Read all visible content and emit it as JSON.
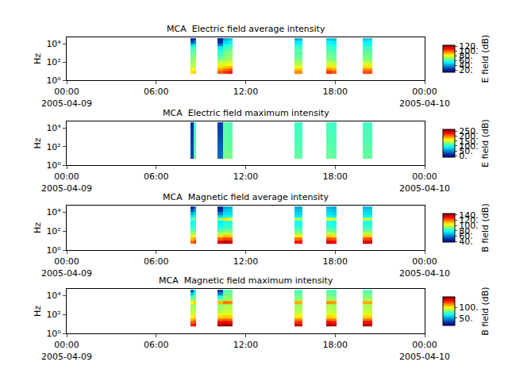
{
  "chart_data": [
    {
      "type": "heatmap",
      "title": "MCA  Electric field average intensity",
      "x": [
        "2005-04-09 08:18",
        "2005-04-09 08:30",
        "2005-04-09 08:41",
        "2005-04-09 10:05",
        "2005-04-09 10:30",
        "2005-04-09 10:50",
        "2005-04-09 11:08",
        "2005-04-09 15:16",
        "2005-04-09 15:47",
        "2005-04-09 17:25",
        "2005-04-09 17:45",
        "2005-04-09 18:05",
        "2005-04-09 19:52",
        "2005-04-09 20:30"
      ],
      "y": [
        5,
        10,
        20,
        40,
        80,
        160,
        320,
        640,
        1280,
        2560,
        5120,
        10240,
        20480,
        40000
      ],
      "cells": [
        [
          85,
          88,
          null,
          100,
          105,
          108,
          null,
          95,
          null,
          105,
          100,
          null,
          102
        ],
        [
          80,
          82,
          null,
          92,
          98,
          100,
          null,
          88,
          null,
          95,
          92,
          null,
          95
        ],
        [
          75,
          78,
          null,
          85,
          88,
          90,
          null,
          80,
          null,
          85,
          84,
          null,
          86
        ],
        [
          72,
          74,
          null,
          78,
          80,
          82,
          null,
          74,
          null,
          78,
          76,
          null,
          78
        ],
        [
          70,
          72,
          null,
          72,
          74,
          76,
          null,
          70,
          null,
          72,
          70,
          null,
          72
        ],
        [
          68,
          70,
          null,
          66,
          70,
          72,
          null,
          66,
          null,
          68,
          66,
          null,
          68
        ],
        [
          66,
          68,
          null,
          62,
          68,
          70,
          null,
          64,
          null,
          66,
          64,
          null,
          66
        ],
        [
          64,
          66,
          null,
          58,
          66,
          68,
          null,
          62,
          null,
          64,
          62,
          null,
          64
        ],
        [
          62,
          64,
          null,
          56,
          64,
          66,
          null,
          64,
          null,
          62,
          60,
          null,
          62
        ],
        [
          58,
          60,
          null,
          50,
          60,
          62,
          null,
          60,
          null,
          60,
          58,
          null,
          60
        ],
        [
          45,
          50,
          null,
          35,
          55,
          58,
          null,
          55,
          null,
          56,
          55,
          null,
          56
        ],
        [
          28,
          35,
          null,
          22,
          48,
          52,
          null,
          50,
          null,
          52,
          50,
          null,
          52
        ],
        [
          20,
          25,
          null,
          18,
          40,
          45,
          null,
          42,
          null,
          45,
          44,
          null,
          45
        ]
      ],
      "xlim": [
        "2005-04-09 00:00",
        "2005-04-10 00:00"
      ],
      "xticks": [
        {
          "value": "2005-04-09 00:00",
          "label": "00:00\n2005-04-09"
        },
        {
          "value": "2005-04-09 06:00",
          "label": "06:00"
        },
        {
          "value": "2005-04-09 12:00",
          "label": "12:00"
        },
        {
          "value": "2005-04-09 18:00",
          "label": "18:00"
        },
        {
          "value": "2005-04-10 00:00",
          "label": "00:00\n2005-04-10"
        }
      ],
      "ylabel": "Hz",
      "log": "y",
      "ylim": [
        1,
        50000
      ],
      "yticks": [
        {
          "value": 1,
          "label": "10⁰"
        },
        {
          "value": 100,
          "label": "10²"
        },
        {
          "value": 10000,
          "label": "10⁴"
        }
      ],
      "color": "Jet",
      "colorbar": {
        "label": "E field (dB)",
        "zlim": [
          10,
          125
        ],
        "zticks": [
          {
            "value": 20,
            "label": "20."
          },
          {
            "value": 40,
            "label": "40."
          },
          {
            "value": 60,
            "label": "60."
          },
          {
            "value": 80,
            "label": "80."
          },
          {
            "value": 100,
            "label": "100."
          },
          {
            "value": 120,
            "label": "120."
          }
        ]
      }
    },
    {
      "type": "heatmap",
      "title": "MCA  Electric field maximum intensity",
      "x": [
        "2005-04-09 08:18",
        "2005-04-09 08:30",
        "2005-04-09 08:41",
        "2005-04-09 10:05",
        "2005-04-09 10:30",
        "2005-04-09 10:50",
        "2005-04-09 11:08",
        "2005-04-09 15:16",
        "2005-04-09 15:47",
        "2005-04-09 17:25",
        "2005-04-09 17:45",
        "2005-04-09 18:05",
        "2005-04-09 19:52",
        "2005-04-09 20:30"
      ],
      "y": [
        5,
        10,
        20,
        40,
        80,
        160,
        320,
        640,
        1280,
        2560,
        5120,
        10240,
        20480,
        40000
      ],
      "cells": [
        [
          25,
          120,
          null,
          40,
          125,
          125,
          null,
          118,
          null,
          120,
          118,
          null,
          118
        ],
        [
          24,
          120,
          null,
          38,
          124,
          124,
          null,
          118,
          null,
          120,
          118,
          null,
          118
        ],
        [
          24,
          118,
          null,
          36,
          122,
          122,
          null,
          116,
          null,
          118,
          116,
          null,
          116
        ],
        [
          23,
          118,
          null,
          35,
          120,
          120,
          null,
          115,
          null,
          118,
          115,
          null,
          116
        ],
        [
          22,
          116,
          null,
          34,
          120,
          118,
          null,
          114,
          null,
          116,
          114,
          null,
          115
        ],
        [
          22,
          115,
          null,
          32,
          118,
          118,
          null,
          112,
          null,
          115,
          113,
          null,
          114
        ],
        [
          21,
          115,
          null,
          30,
          118,
          116,
          null,
          112,
          null,
          114,
          112,
          null,
          113
        ],
        [
          20,
          114,
          null,
          28,
          118,
          116,
          null,
          111,
          null,
          114,
          112,
          null,
          112
        ],
        [
          20,
          114,
          null,
          26,
          117,
          115,
          null,
          110,
          null,
          113,
          111,
          null,
          112
        ],
        [
          18,
          112,
          null,
          25,
          116,
          114,
          null,
          110,
          null,
          112,
          110,
          null,
          111
        ],
        [
          17,
          112,
          null,
          23,
          116,
          114,
          null,
          109,
          null,
          111,
          109,
          null,
          111
        ],
        [
          16,
          111,
          null,
          22,
          115,
          113,
          null,
          108,
          null,
          110,
          108,
          null,
          110
        ],
        [
          15,
          110,
          null,
          20,
          115,
          112,
          null,
          108,
          null,
          110,
          108,
          null,
          110
        ]
      ],
      "xlim": [
        "2005-04-09 00:00",
        "2005-04-10 00:00"
      ],
      "xticks": [
        {
          "value": "2005-04-09 00:00",
          "label": "00:00\n2005-04-09"
        },
        {
          "value": "2005-04-09 06:00",
          "label": "06:00"
        },
        {
          "value": "2005-04-09 12:00",
          "label": "12:00"
        },
        {
          "value": "2005-04-09 18:00",
          "label": "18:00"
        },
        {
          "value": "2005-04-10 00:00",
          "label": "00:00\n2005-04-10"
        }
      ],
      "ylabel": "Hz",
      "log": "y",
      "ylim": [
        1,
        50000
      ],
      "yticks": [
        {
          "value": 1,
          "label": "10⁰"
        },
        {
          "value": 100,
          "label": "10²"
        },
        {
          "value": 10000,
          "label": "10⁴"
        }
      ],
      "color": "Jet",
      "colorbar": {
        "label": "E field (dB)",
        "zlim": [
          -15,
          270
        ],
        "zticks": [
          {
            "value": 0,
            "label": "0."
          },
          {
            "value": 50,
            "label": "50."
          },
          {
            "value": 100,
            "label": "100."
          },
          {
            "value": 150,
            "label": "150."
          },
          {
            "value": 200,
            "label": "200."
          },
          {
            "value": 250,
            "label": "250."
          }
        ]
      }
    },
    {
      "type": "heatmap",
      "title": "MCA  Magnetic field average intensity",
      "x": [
        "2005-04-09 08:18",
        "2005-04-09 08:30",
        "2005-04-09 08:41",
        "2005-04-09 10:05",
        "2005-04-09 10:30",
        "2005-04-09 10:50",
        "2005-04-09 11:08",
        "2005-04-09 15:16",
        "2005-04-09 15:47",
        "2005-04-09 17:25",
        "2005-04-09 17:45",
        "2005-04-09 18:05",
        "2005-04-09 19:52",
        "2005-04-09 20:30"
      ],
      "y": [
        5,
        10,
        20,
        40,
        80,
        160,
        320,
        640,
        1280,
        2560,
        5120,
        10240,
        20480,
        40000
      ],
      "cells": [
        [
          120,
          125,
          null,
          135,
          138,
          135,
          null,
          130,
          null,
          135,
          132,
          null,
          135
        ],
        [
          112,
          115,
          null,
          122,
          125,
          124,
          null,
          120,
          null,
          124,
          122,
          null,
          124
        ],
        [
          102,
          105,
          null,
          108,
          112,
          110,
          null,
          106,
          null,
          110,
          108,
          null,
          110
        ],
        [
          95,
          96,
          null,
          96,
          98,
          98,
          null,
          95,
          null,
          98,
          96,
          null,
          98
        ],
        [
          88,
          88,
          null,
          88,
          90,
          90,
          null,
          88,
          null,
          90,
          88,
          null,
          90
        ],
        [
          84,
          84,
          null,
          82,
          85,
          85,
          null,
          84,
          null,
          85,
          84,
          null,
          85
        ],
        [
          80,
          80,
          null,
          78,
          82,
          82,
          null,
          80,
          null,
          82,
          80,
          null,
          82
        ],
        [
          78,
          78,
          null,
          75,
          80,
          80,
          null,
          78,
          null,
          80,
          78,
          null,
          80
        ],
        [
          85,
          90,
          null,
          92,
          108,
          105,
          null,
          95,
          null,
          102,
          100,
          null,
          98
        ],
        [
          75,
          76,
          null,
          72,
          78,
          78,
          null,
          76,
          null,
          78,
          76,
          null,
          78
        ],
        [
          68,
          72,
          null,
          62,
          74,
          74,
          null,
          72,
          null,
          74,
          72,
          null,
          74
        ],
        [
          55,
          65,
          null,
          50,
          70,
          72,
          null,
          70,
          null,
          72,
          70,
          null,
          72
        ],
        [
          45,
          58,
          null,
          45,
          66,
          68,
          null,
          66,
          null,
          68,
          66,
          null,
          68
        ]
      ],
      "xlim": [
        "2005-04-09 00:00",
        "2005-04-10 00:00"
      ],
      "xticks": [
        {
          "value": "2005-04-09 00:00",
          "label": "00:00\n2005-04-09"
        },
        {
          "value": "2005-04-09 06:00",
          "label": "06:00"
        },
        {
          "value": "2005-04-09 12:00",
          "label": "12:00"
        },
        {
          "value": "2005-04-09 18:00",
          "label": "18:00"
        },
        {
          "value": "2005-04-10 00:00",
          "label": "00:00\n2005-04-10"
        }
      ],
      "ylabel": "Hz",
      "log": "y",
      "ylim": [
        1,
        50000
      ],
      "yticks": [
        {
          "value": 1,
          "label": "10⁰"
        },
        {
          "value": 100,
          "label": "10²"
        },
        {
          "value": 10000,
          "label": "10⁴"
        }
      ],
      "color": "Jet",
      "colorbar": {
        "label": "B field (dB)",
        "zlim": [
          38,
          145
        ],
        "zticks": [
          {
            "value": 40,
            "label": "40."
          },
          {
            "value": 60,
            "label": "60."
          },
          {
            "value": 80,
            "label": "80."
          },
          {
            "value": 100,
            "label": "100."
          },
          {
            "value": 120,
            "label": "120."
          },
          {
            "value": 140,
            "label": "140."
          }
        ]
      }
    },
    {
      "type": "heatmap",
      "title": "MCA  Magnetic field maximum intensity",
      "x": [
        "2005-04-09 08:18",
        "2005-04-09 08:30",
        "2005-04-09 08:41",
        "2005-04-09 10:05",
        "2005-04-09 10:30",
        "2005-04-09 10:50",
        "2005-04-09 11:08",
        "2005-04-09 15:16",
        "2005-04-09 15:47",
        "2005-04-09 17:25",
        "2005-04-09 17:45",
        "2005-04-09 18:05",
        "2005-04-09 19:52",
        "2005-04-09 20:30"
      ],
      "y": [
        5,
        10,
        20,
        40,
        80,
        160,
        320,
        640,
        1280,
        2560,
        5120,
        10240,
        20480,
        40000
      ],
      "cells": [
        [
          130,
          135,
          null,
          145,
          148,
          145,
          null,
          140,
          null,
          145,
          142,
          null,
          145
        ],
        [
          120,
          125,
          null,
          132,
          135,
          132,
          null,
          128,
          null,
          132,
          130,
          null,
          132
        ],
        [
          110,
          112,
          null,
          118,
          120,
          118,
          null,
          115,
          null,
          118,
          116,
          null,
          118
        ],
        [
          100,
          102,
          null,
          104,
          106,
          105,
          null,
          102,
          null,
          105,
          103,
          null,
          105
        ],
        [
          94,
          95,
          null,
          95,
          97,
          96,
          null,
          94,
          null,
          96,
          95,
          null,
          96
        ],
        [
          90,
          91,
          null,
          90,
          92,
          92,
          null,
          90,
          null,
          92,
          90,
          null,
          92
        ],
        [
          88,
          88,
          null,
          86,
          90,
          90,
          null,
          88,
          null,
          90,
          88,
          null,
          90
        ],
        [
          86,
          86,
          null,
          84,
          88,
          88,
          null,
          86,
          null,
          88,
          86,
          null,
          88
        ],
        [
          100,
          105,
          null,
          108,
          118,
          115,
          null,
          110,
          null,
          114,
          112,
          null,
          110
        ],
        [
          84,
          85,
          null,
          82,
          88,
          88,
          null,
          86,
          null,
          88,
          86,
          null,
          88
        ],
        [
          75,
          80,
          null,
          70,
          84,
          84,
          null,
          82,
          null,
          84,
          82,
          null,
          84
        ],
        [
          55,
          72,
          null,
          45,
          80,
          80,
          null,
          78,
          null,
          80,
          78,
          null,
          80
        ],
        [
          35,
          62,
          null,
          30,
          76,
          76,
          null,
          74,
          null,
          76,
          74,
          null,
          76
        ]
      ],
      "xlim": [
        "2005-04-09 00:00",
        "2005-04-10 00:00"
      ],
      "xticks": [
        {
          "value": "2005-04-09 00:00",
          "label": "00:00\n2005-04-09"
        },
        {
          "value": "2005-04-09 06:00",
          "label": "06:00"
        },
        {
          "value": "2005-04-09 12:00",
          "label": "12:00"
        },
        {
          "value": "2005-04-09 18:00",
          "label": "18:00"
        },
        {
          "value": "2005-04-10 00:00",
          "label": "00:00\n2005-04-10"
        }
      ],
      "ylabel": "Hz",
      "log": "y",
      "ylim": [
        1,
        50000
      ],
      "yticks": [
        {
          "value": 1,
          "label": "10⁰"
        },
        {
          "value": 100,
          "label": "10²"
        },
        {
          "value": 10000,
          "label": "10⁴"
        }
      ],
      "color": "Jet",
      "colorbar": {
        "label": "B field (dB)",
        "zlim": [
          15,
          150
        ],
        "zticks": [
          {
            "value": 50,
            "label": "50."
          },
          {
            "value": 100,
            "label": "100."
          }
        ]
      }
    }
  ]
}
